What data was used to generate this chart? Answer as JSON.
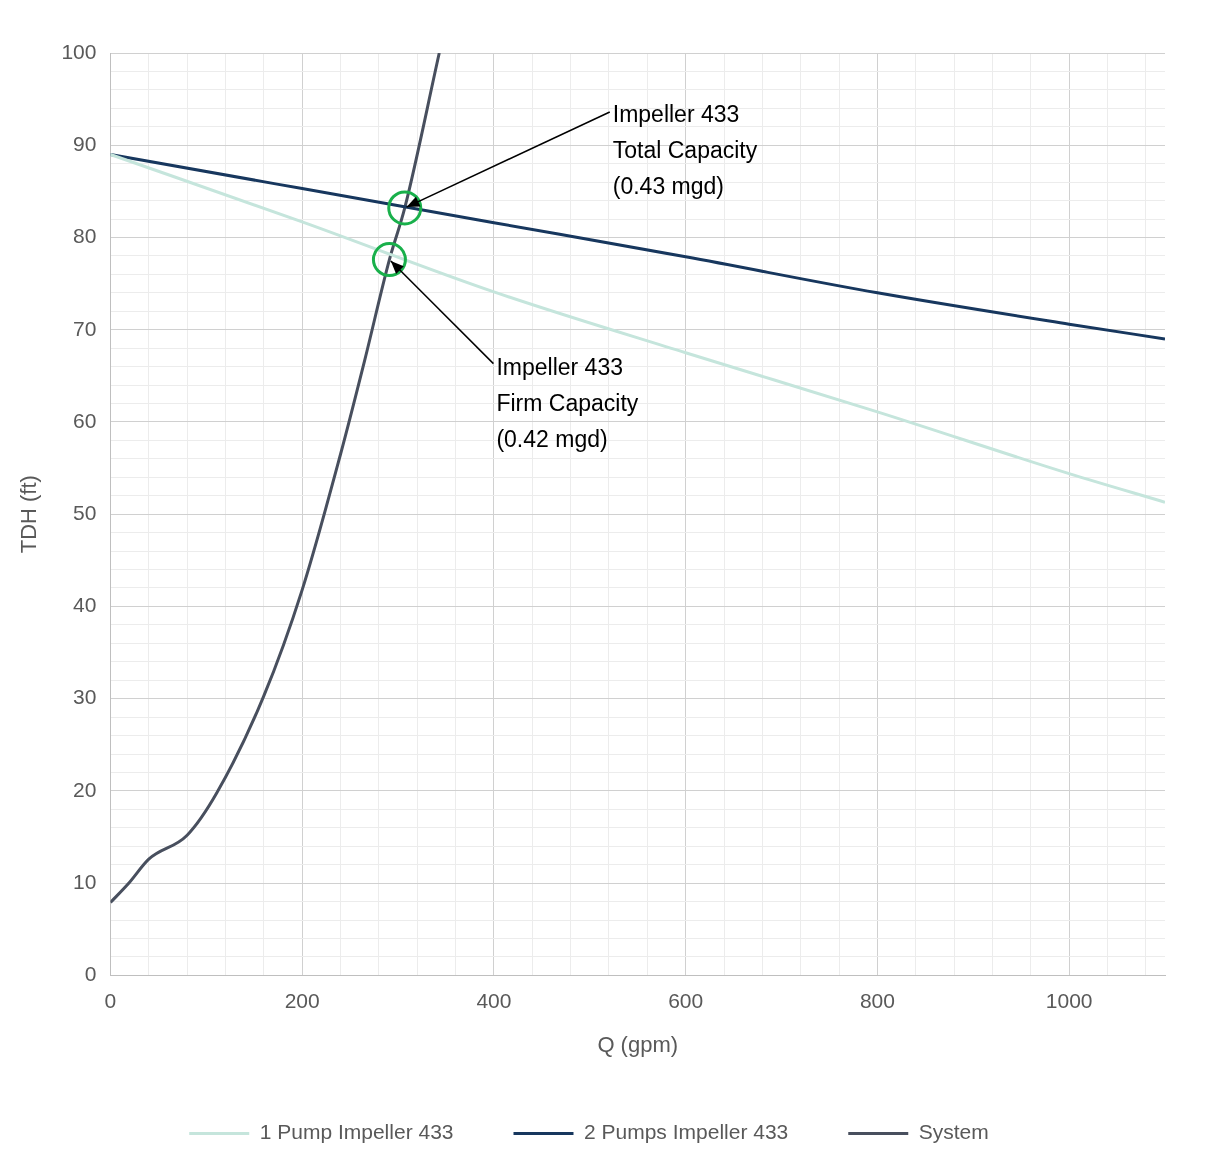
{
  "chart_data": {
    "type": "line",
    "xlabel": "Q (gpm)",
    "ylabel": "TDH (ft)",
    "xlim": [
      0,
      1100
    ],
    "ylim": [
      0,
      100
    ],
    "xticks": [
      0,
      {
        "value": 40,
        "label": null
      },
      {
        "value": 80,
        "label": null
      },
      {
        "value": 120,
        "label": null
      },
      {
        "value": 160,
        "label": null
      },
      200,
      {
        "value": 240,
        "label": null
      },
      {
        "value": 280,
        "label": null
      },
      {
        "value": 320,
        "label": null
      },
      {
        "value": 360,
        "label": null
      },
      400,
      {
        "value": 440,
        "label": null
      },
      {
        "value": 480,
        "label": null
      },
      {
        "value": 520,
        "label": null
      },
      {
        "value": 560,
        "label": null
      },
      600,
      {
        "value": 640,
        "label": null
      },
      {
        "value": 680,
        "label": null
      },
      {
        "value": 720,
        "label": null
      },
      {
        "value": 760,
        "label": null
      },
      800,
      {
        "value": 840,
        "label": null
      },
      {
        "value": 880,
        "label": null
      },
      {
        "value": 920,
        "label": null
      },
      {
        "value": 960,
        "label": null
      },
      1000,
      {
        "value": 1040,
        "label": null
      },
      {
        "value": 1080,
        "label": null
      }
    ],
    "yticks": [
      0,
      {
        "value": 2,
        "label": null
      },
      {
        "value": 4,
        "label": null
      },
      {
        "value": 6,
        "label": null
      },
      {
        "value": 8,
        "label": null
      },
      10,
      {
        "value": 12,
        "label": null
      },
      {
        "value": 14,
        "label": null
      },
      {
        "value": 16,
        "label": null
      },
      {
        "value": 18,
        "label": null
      },
      20,
      {
        "value": 22,
        "label": null
      },
      {
        "value": 24,
        "label": null
      },
      {
        "value": 26,
        "label": null
      },
      {
        "value": 28,
        "label": null
      },
      30,
      {
        "value": 32,
        "label": null
      },
      {
        "value": 34,
        "label": null
      },
      {
        "value": 36,
        "label": null
      },
      {
        "value": 38,
        "label": null
      },
      40,
      {
        "value": 42,
        "label": null
      },
      {
        "value": 44,
        "label": null
      },
      {
        "value": 46,
        "label": null
      },
      {
        "value": 48,
        "label": null
      },
      50,
      {
        "value": 52,
        "label": null
      },
      {
        "value": 54,
        "label": null
      },
      {
        "value": 56,
        "label": null
      },
      {
        "value": 58,
        "label": null
      },
      60,
      {
        "value": 62,
        "label": null
      },
      {
        "value": 64,
        "label": null
      },
      {
        "value": 66,
        "label": null
      },
      {
        "value": 68,
        "label": null
      },
      70,
      {
        "value": 72,
        "label": null
      },
      {
        "value": 74,
        "label": null
      },
      {
        "value": 76,
        "label": null
      },
      {
        "value": 78,
        "label": null
      },
      80,
      {
        "value": 82,
        "label": null
      },
      {
        "value": 84,
        "label": null
      },
      {
        "value": 86,
        "label": null
      },
      {
        "value": 88,
        "label": null
      },
      90,
      {
        "value": 92,
        "label": null
      },
      {
        "value": 94,
        "label": null
      },
      {
        "value": 96,
        "label": null
      },
      {
        "value": 98,
        "label": null
      },
      100
    ],
    "grid": true,
    "legend": "bottom",
    "marker": "none",
    "line_style": "solid",
    "series": [
      {
        "name": "1 Pump Impeller 433",
        "color": "#c5e5dc",
        "x": [
          0,
          200,
          400,
          600,
          800,
          1000,
          1100
        ],
        "values": [
          89,
          81.7,
          74.1,
          67.5,
          61.1,
          54.4,
          51.3
        ]
      },
      {
        "name": "2 Pumps Impeller 433",
        "color": "#17375e",
        "x": [
          0,
          200,
          400,
          600,
          800,
          1000,
          1100
        ],
        "values": [
          89,
          85.3,
          81.6,
          77.9,
          74,
          70.6,
          69
        ]
      },
      {
        "name": "System",
        "color": "#484f5e",
        "x": [
          0,
          20,
          40,
          80,
          111,
          160,
          200,
          240,
          265,
          291,
          307,
          343
        ],
        "values": [
          7.9,
          10.1,
          12.6,
          15.2,
          19.8,
          30.3,
          41.8,
          56.5,
          66.6,
          77.6,
          83.2,
          100
        ]
      }
    ],
    "annotations": [
      {
        "text": "Impeller 433\nTotal Capacity\n(0.43 mgd)",
        "x": 307,
        "y": 83.2
      },
      {
        "text": "Impeller 433\nFirm Capacity\n(0.42 mgd)",
        "x": 291,
        "y": 77.6
      }
    ]
  }
}
